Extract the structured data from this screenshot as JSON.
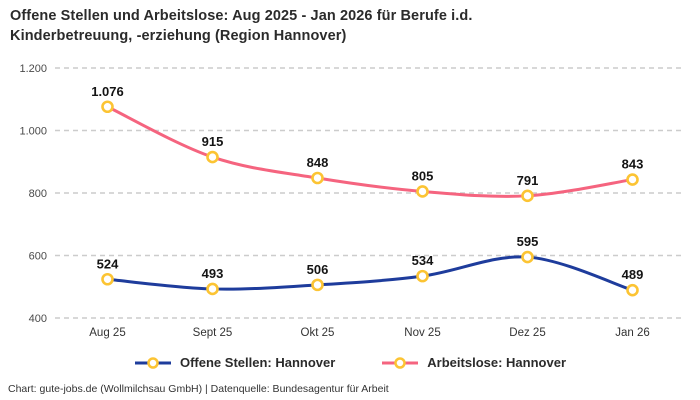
{
  "title": {
    "line1": "Offene Stellen und Arbeitslose: Aug 2025 - Jan 2026 für Berufe i.d.",
    "line2": "Kinderbetreuung, -erziehung (Region Hannover)"
  },
  "footer": "Chart: gute-jobs.de (Wollmilchsau GmbH) | Datenquelle: Bundesagentur für Arbeit",
  "colors": {
    "offene_stellen": "#1e3c9c",
    "arbeitslose": "#f5647f",
    "marker_ring": "#fcc433",
    "marker_fill": "#ffffff",
    "gridline": "#cccccc",
    "text_dark": "#2b2b2b"
  },
  "legend": {
    "items": [
      {
        "label": "Offene Stellen: Hannover",
        "color": "#1e3c9c"
      },
      {
        "label": "Arbeitslose: Hannover",
        "color": "#f5647f"
      }
    ]
  },
  "chart_data": {
    "type": "line",
    "title": "Offene Stellen und Arbeitslose: Aug 2025 - Jan 2026 für Berufe i.d. Kinderbetreuung, -erziehung (Region Hannover)",
    "categories": [
      "Aug 25",
      "Sept 25",
      "Okt 25",
      "Nov 25",
      "Dez 25",
      "Jan 26"
    ],
    "series": [
      {
        "name": "Offene Stellen: Hannover",
        "color": "#1e3c9c",
        "values": [
          524,
          493,
          506,
          534,
          595,
          489
        ]
      },
      {
        "name": "Arbeitslose: Hannover",
        "color": "#f5647f",
        "values": [
          1076,
          915,
          848,
          805,
          791,
          843
        ]
      }
    ],
    "ylim": [
      400,
      1200
    ],
    "yticks": [
      400,
      600,
      800,
      1000,
      1200
    ],
    "ytick_labels": [
      "400",
      "600",
      "800",
      "1.000",
      "1.200"
    ],
    "xlabel": "",
    "ylabel": "",
    "grid": "horizontal-dashed",
    "legend_position": "bottom",
    "value_labels_shown": true,
    "thousands_separator": "."
  }
}
